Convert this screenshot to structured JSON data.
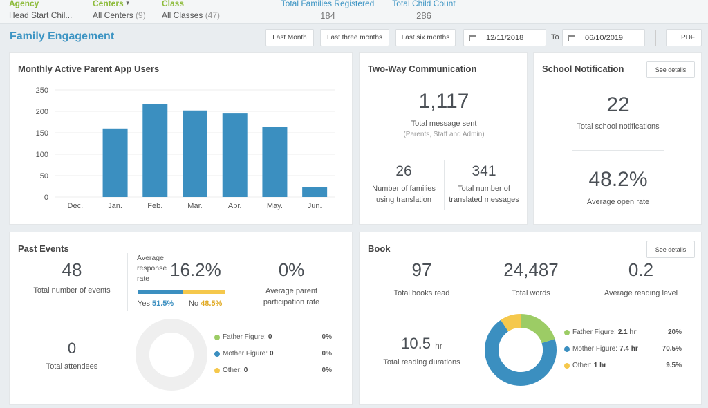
{
  "filters": {
    "agency": {
      "label": "Agency",
      "value": "Head Start Chil..."
    },
    "centers": {
      "label": "Centers",
      "value": "All Centers",
      "count": "(9)"
    },
    "class": {
      "label": "Class",
      "value": "All Classes",
      "count": "(47)"
    },
    "total_families": {
      "label": "Total Families Registered",
      "value": "184"
    },
    "total_children": {
      "label": "Total Child Count",
      "value": "286"
    }
  },
  "header": {
    "title": "Family Engagement",
    "btn_last_month": "Last Month",
    "btn_three_months": "Last three months",
    "btn_six_months": "Last six months",
    "date_from": "12/11/2018",
    "to_label": "To",
    "date_to": "06/10/2019",
    "pdf_label": "PDF"
  },
  "monthly_users": {
    "title": "Monthly Active Parent App Users"
  },
  "chart_data": {
    "type": "bar",
    "title": "Monthly Active Parent App Users",
    "categories": [
      "Dec.",
      "Jan.",
      "Feb.",
      "Mar.",
      "Apr.",
      "May.",
      "Jun."
    ],
    "values": [
      0,
      160,
      217,
      202,
      195,
      164,
      24
    ],
    "ylim": [
      0,
      250
    ],
    "yticks": [
      0,
      50,
      100,
      150,
      200,
      250
    ],
    "grid": true,
    "color": "#3b8fc0"
  },
  "two_way": {
    "title": "Two-Way Communication",
    "total_messages": "1,117",
    "total_messages_label": "Total message sent",
    "total_messages_note": "(Parents, Staff and Admin)",
    "families_translation": "26",
    "families_translation_label_1": "Number of families",
    "families_translation_label_2": "using translation",
    "translated_messages": "341",
    "translated_messages_label_1": "Total number of",
    "translated_messages_label_2": "translated messages"
  },
  "school_notification": {
    "title": "School Notification",
    "details_label": "See details",
    "total": "22",
    "total_label": "Total school notifications",
    "open_rate": "48.2%",
    "open_rate_label": "Average open rate"
  },
  "past_events": {
    "title": "Past Events",
    "total_events": "48",
    "total_events_label": "Total number of events",
    "response_label_1": "Average",
    "response_label_2": "response",
    "response_label_3": "rate",
    "response_rate": "16.2%",
    "yes_label": "Yes",
    "yes_value": "51.5%",
    "yes_fraction": 0.515,
    "no_label": "No",
    "no_value": "48.5%",
    "participation": "0%",
    "participation_label_1": "Average parent",
    "participation_label_2": "participation rate",
    "attendees": "0",
    "attendees_label": "Total attendees",
    "legend": [
      {
        "label": "Father Figure:",
        "value": "0",
        "pct": "0%",
        "color": "#9ccc65"
      },
      {
        "label": "Mother Figure:",
        "value": "0",
        "pct": "0%",
        "color": "#3b8fc0"
      },
      {
        "label": "Other:",
        "value": "0",
        "pct": "0%",
        "color": "#f5c84c"
      }
    ]
  },
  "book": {
    "title": "Book",
    "details_label": "See details",
    "books_read": "97",
    "books_read_label": "Total books read",
    "words": "24,487",
    "words_label": "Total words",
    "reading_level": "0.2",
    "reading_level_label": "Average reading level",
    "durations": "10.5",
    "durations_unit": "hr",
    "durations_label": "Total reading durations",
    "legend": [
      {
        "label": "Father Figure:",
        "value": "2.1 hr",
        "pct": "20%",
        "fraction": 0.2,
        "color": "#9ccc65"
      },
      {
        "label": "Mother Figure:",
        "value": "7.4 hr",
        "pct": "70.5%",
        "fraction": 0.705,
        "color": "#3b8fc0"
      },
      {
        "label": "Other:",
        "value": "1 hr",
        "pct": "9.5%",
        "fraction": 0.095,
        "color": "#f5c84c"
      }
    ]
  }
}
